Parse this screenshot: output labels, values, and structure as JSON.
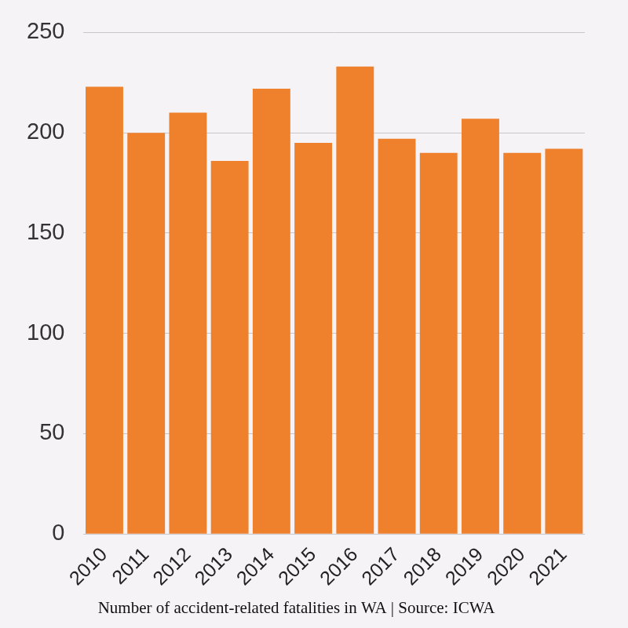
{
  "chart_data": {
    "type": "bar",
    "title": "Number of accident-related fatalities in WA | Source: ICWA",
    "categories": [
      "2010",
      "2011",
      "2012",
      "2013",
      "2014",
      "2015",
      "2016",
      "2017",
      "2018",
      "2019",
      "2020",
      "2021"
    ],
    "values": [
      223,
      200,
      210,
      186,
      222,
      195,
      233,
      197,
      190,
      207,
      190,
      192
    ],
    "color": "#f0812c",
    "ylim": [
      0,
      250
    ],
    "yticks": [
      0,
      50,
      100,
      150,
      200,
      250
    ],
    "grid": true
  }
}
